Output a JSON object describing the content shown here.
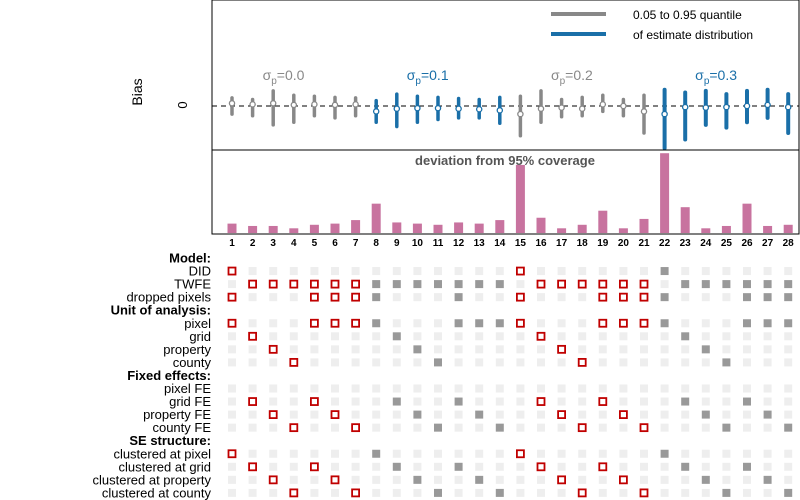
{
  "chart_data": {
    "type": "specification-curve",
    "bias_panel": {
      "ylabel": "Bias",
      "ytick": "0",
      "legend": {
        "line1": "0.05 to 0.95 quantile",
        "line2": "of estimate distribution",
        "colors": [
          "#888888",
          "#1a6fa8"
        ]
      },
      "group_labels": [
        {
          "base": "σ",
          "sub": "p",
          "text": "=0.0",
          "color": "#888888",
          "center_spec": 3.5
        },
        {
          "base": "σ",
          "sub": "p",
          "text": "=0.1",
          "color": "#1a6fa8",
          "center_spec": 10.5
        },
        {
          "base": "σ",
          "sub": "p",
          "text": "=0.2",
          "color": "#888888",
          "center_spec": 17.5
        },
        {
          "base": "σ",
          "sub": "p",
          "text": "=0.3",
          "color": "#1a6fa8",
          "center_spec": 24.5
        }
      ],
      "ylim": [
        -1,
        1
      ],
      "point_estimates": [
        0.05,
        0.03,
        0.05,
        0.02,
        0.03,
        0.02,
        0.03,
        -0.1,
        -0.05,
        -0.04,
        -0.04,
        -0.05,
        -0.06,
        -0.08,
        -0.15,
        -0.05,
        -0.03,
        -0.05,
        0.03,
        0.0,
        -0.1,
        -0.15,
        -0.02,
        -0.03,
        -0.02,
        0.0,
        0.02,
        -0.02
      ],
      "interval_lower": [
        -0.15,
        -0.18,
        -0.35,
        -0.3,
        -0.18,
        -0.22,
        -0.18,
        -0.3,
        -0.38,
        -0.3,
        -0.25,
        -0.22,
        -0.22,
        -0.32,
        -0.55,
        -0.3,
        -0.2,
        -0.18,
        -0.1,
        -0.18,
        -0.5,
        -0.78,
        -0.62,
        -0.35,
        -0.4,
        -0.3,
        -0.22,
        -0.5
      ],
      "interval_upper": [
        0.15,
        0.12,
        0.28,
        0.2,
        0.18,
        0.16,
        0.15,
        0.1,
        0.22,
        0.18,
        0.16,
        0.14,
        0.12,
        0.16,
        0.18,
        0.28,
        0.12,
        0.16,
        0.2,
        0.12,
        0.2,
        0.3,
        0.25,
        0.28,
        0.22,
        0.28,
        0.3,
        0.22
      ]
    },
    "coverage_panel": {
      "title": "deviation from 95% coverage",
      "values": [
        0.08,
        0.06,
        0.06,
        0.04,
        0.07,
        0.08,
        0.11,
        0.25,
        0.09,
        0.08,
        0.07,
        0.09,
        0.08,
        0.11,
        0.58,
        0.13,
        0.04,
        0.07,
        0.19,
        0.04,
        0.12,
        0.68,
        0.22,
        0.04,
        0.06,
        0.25,
        0.06,
        0.07
      ],
      "ylim": [
        0,
        0.75
      ],
      "color": "#c8739f"
    },
    "specs": [
      "1",
      "2",
      "3",
      "4",
      "5",
      "6",
      "7",
      "8",
      "9",
      "10",
      "11",
      "12",
      "13",
      "14",
      "15",
      "16",
      "17",
      "18",
      "19",
      "20",
      "21",
      "22",
      "23",
      "24",
      "25",
      "26",
      "27",
      "28"
    ],
    "rows": [
      {
        "label": "Model:",
        "header": true
      },
      {
        "label": "DID",
        "active": [
          1,
          15,
          22
        ]
      },
      {
        "label": "TWFE",
        "active": [
          2,
          3,
          4,
          5,
          6,
          7,
          8,
          9,
          10,
          11,
          12,
          13,
          14,
          16,
          17,
          18,
          19,
          20,
          21,
          23,
          24,
          25,
          26,
          27,
          28
        ]
      },
      {
        "label": "dropped pixels",
        "active": [
          1,
          5,
          6,
          7,
          8,
          12,
          15,
          19,
          20,
          21,
          22,
          26,
          27,
          28
        ]
      },
      {
        "label": "Unit of analysis:",
        "header": true
      },
      {
        "label": "pixel",
        "active": [
          1,
          5,
          6,
          7,
          8,
          12,
          13,
          14,
          15,
          19,
          20,
          21,
          22,
          26,
          27,
          28
        ]
      },
      {
        "label": "grid",
        "active": [
          2,
          9,
          16,
          23
        ]
      },
      {
        "label": "property",
        "active": [
          3,
          10,
          17,
          24
        ]
      },
      {
        "label": "county",
        "active": [
          4,
          11,
          18,
          25
        ]
      },
      {
        "label": "Fixed effects:",
        "header": true
      },
      {
        "label": "pixel FE",
        "active": []
      },
      {
        "label": "grid FE",
        "active": [
          2,
          5,
          9,
          12,
          16,
          19,
          23,
          26
        ]
      },
      {
        "label": "property FE",
        "active": [
          3,
          6,
          10,
          13,
          17,
          20,
          24,
          27
        ]
      },
      {
        "label": "county FE",
        "active": [
          4,
          7,
          11,
          14,
          18,
          21,
          25,
          28
        ]
      },
      {
        "label": "SE structure:",
        "header": true
      },
      {
        "label": "clustered at pixel",
        "active": [
          1,
          8,
          15,
          22
        ]
      },
      {
        "label": "clustered at grid",
        "active": [
          2,
          5,
          9,
          12,
          16,
          19,
          23,
          26
        ]
      },
      {
        "label": "clustered at property",
        "active": [
          3,
          6,
          10,
          13,
          17,
          20,
          24,
          27
        ]
      },
      {
        "label": "clustered at county",
        "active": [
          4,
          7,
          11,
          14,
          18,
          21,
          25,
          28
        ]
      }
    ],
    "colors": {
      "gray": "#888888",
      "blue": "#1a6fa8",
      "red_marker": "#c00000",
      "gray_marker": "#999999",
      "inactive": "#eeeeee"
    }
  }
}
